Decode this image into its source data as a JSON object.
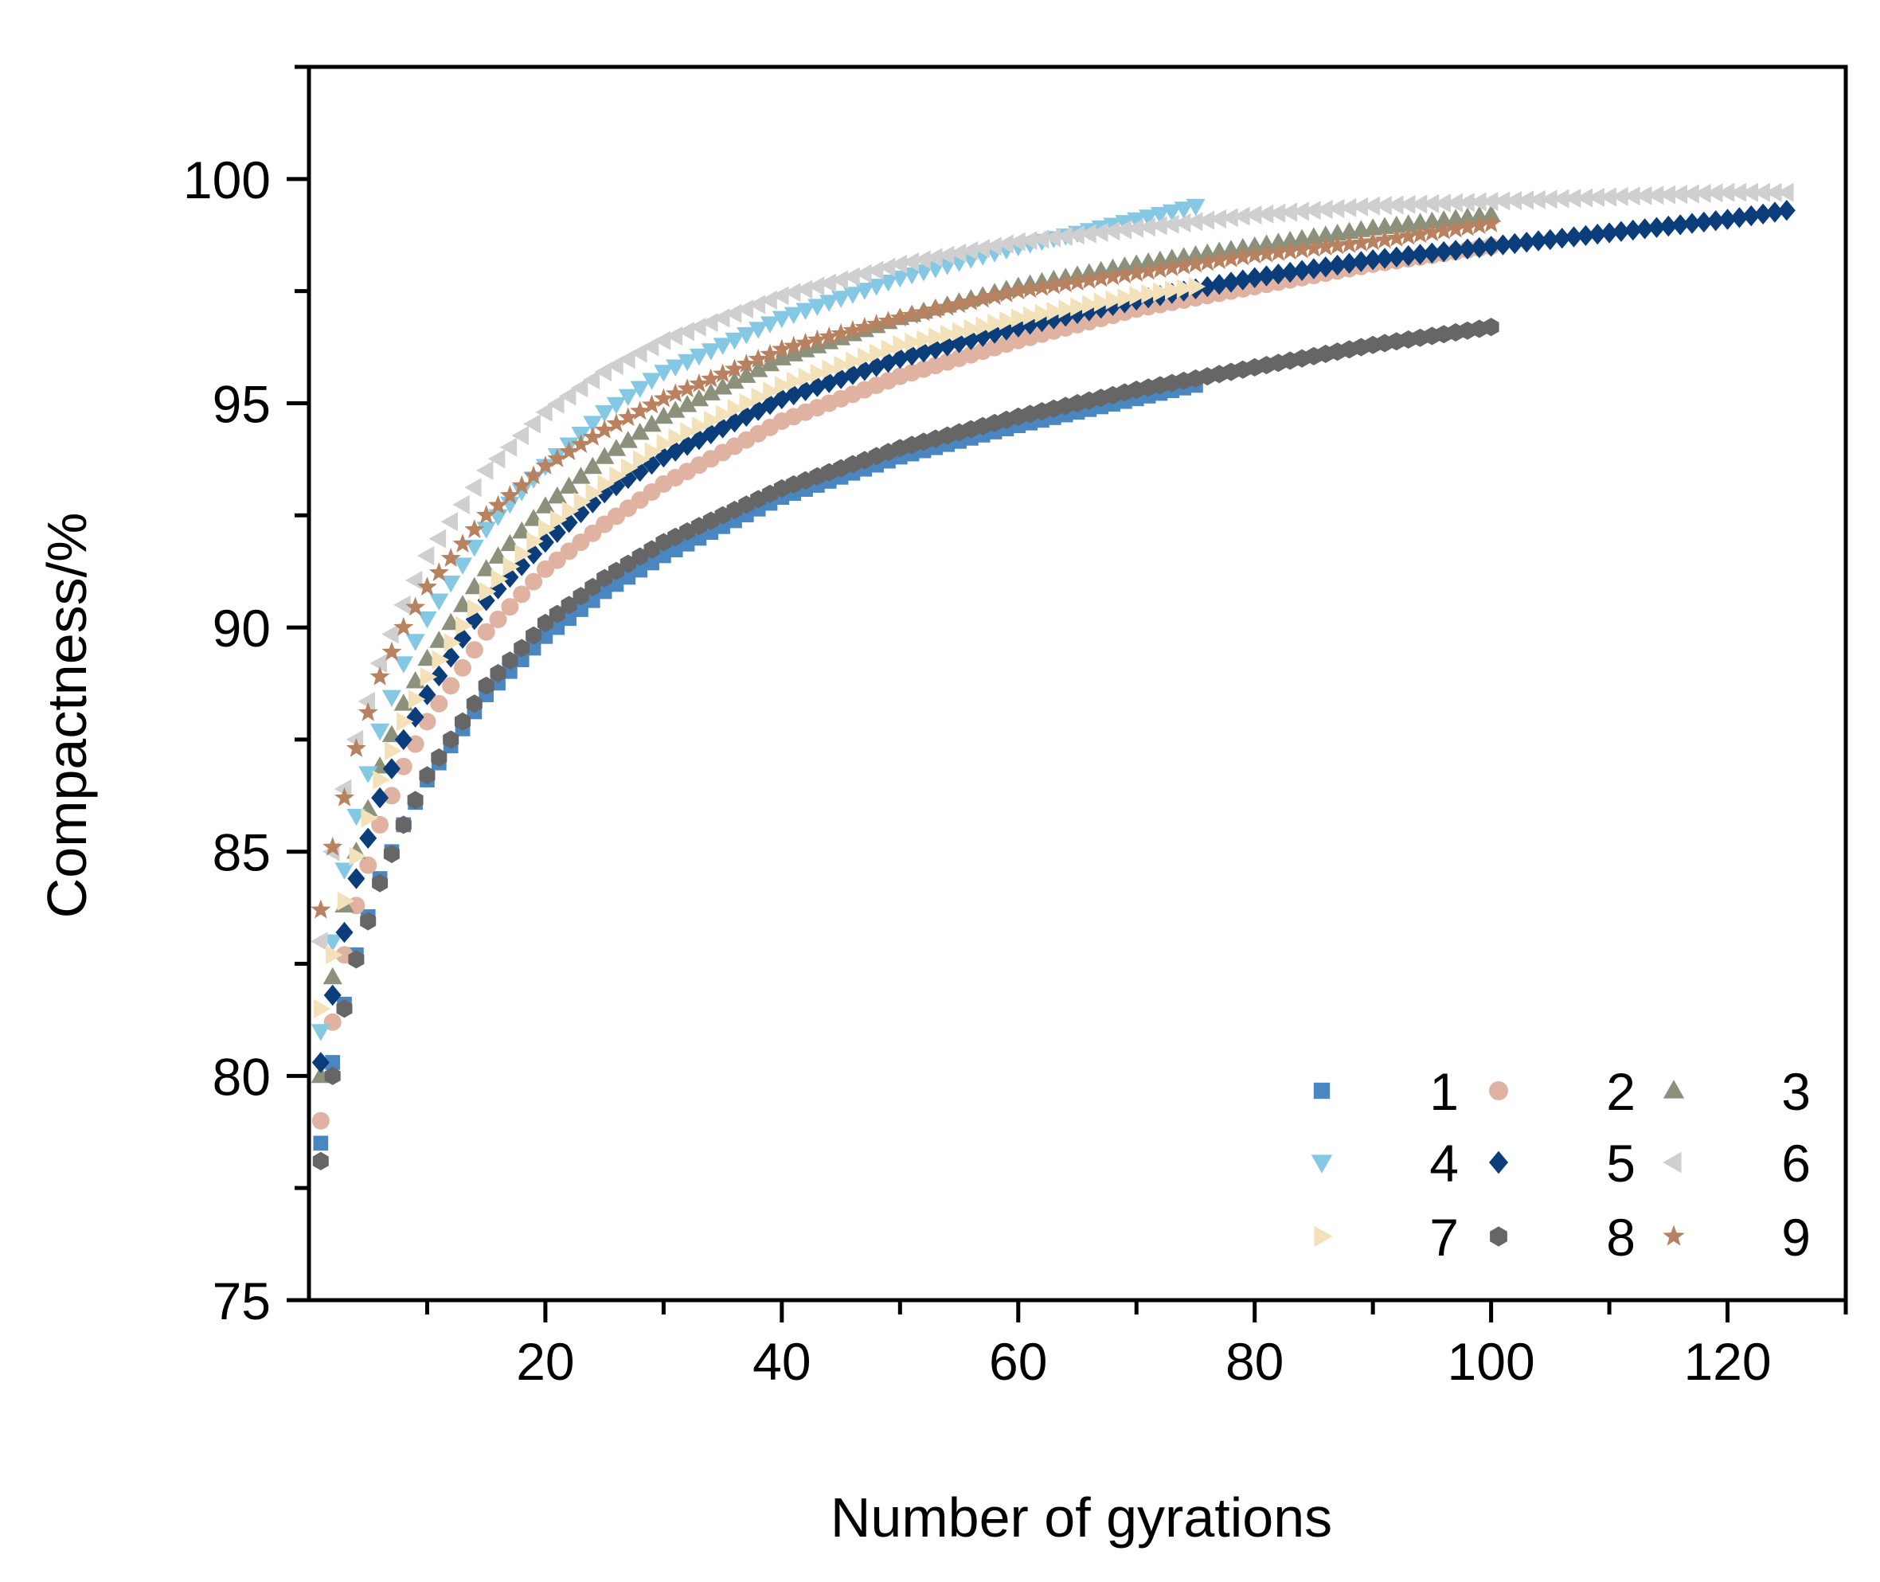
{
  "chart_data": {
    "type": "scatter",
    "title": "",
    "xlabel": "Number of gyrations",
    "ylabel": "Compactness/%",
    "xlim": [
      0,
      130
    ],
    "ylim": [
      75,
      102.5
    ],
    "xticks": [
      20,
      40,
      60,
      80,
      100,
      120
    ],
    "xtick_labels": [
      "20",
      "40",
      "60",
      "80",
      "100",
      "120"
    ],
    "xminor_ticks": [
      10,
      30,
      50,
      70,
      90,
      110,
      130
    ],
    "yticks": [
      75,
      80,
      85,
      90,
      95,
      100
    ],
    "ytick_labels": [
      "75",
      "80",
      "85",
      "90",
      "95",
      "100"
    ],
    "yminor_ticks": [
      77.5,
      82.5,
      87.5,
      92.5,
      97.5,
      102.5
    ],
    "grid": false,
    "legend": {
      "position": "bottom-right",
      "columns": 3
    },
    "series": [
      {
        "name": "1",
        "marker": "square",
        "color": "#4a86bf",
        "n_max": 75,
        "anchors": [
          [
            1,
            78.5
          ],
          [
            2,
            80.3
          ],
          [
            3,
            81.6
          ],
          [
            4,
            82.7
          ],
          [
            6,
            84.4
          ],
          [
            8,
            85.6
          ],
          [
            10,
            86.6
          ],
          [
            15,
            88.5
          ],
          [
            20,
            89.8
          ],
          [
            25,
            90.8
          ],
          [
            30,
            91.6
          ],
          [
            40,
            92.9
          ],
          [
            50,
            93.8
          ],
          [
            60,
            94.5
          ],
          [
            70,
            95.1
          ],
          [
            75,
            95.4
          ]
        ]
      },
      {
        "name": "2",
        "marker": "circle",
        "color": "#dfb2a1",
        "n_max": 100,
        "anchors": [
          [
            1,
            79.0
          ],
          [
            2,
            81.2
          ],
          [
            3,
            82.7
          ],
          [
            4,
            83.8
          ],
          [
            6,
            85.6
          ],
          [
            8,
            86.9
          ],
          [
            10,
            87.9
          ],
          [
            15,
            89.9
          ],
          [
            20,
            91.3
          ],
          [
            25,
            92.3
          ],
          [
            30,
            93.2
          ],
          [
            40,
            94.6
          ],
          [
            50,
            95.6
          ],
          [
            60,
            96.4
          ],
          [
            70,
            97.1
          ],
          [
            80,
            97.6
          ],
          [
            90,
            98.1
          ],
          [
            100,
            98.5
          ]
        ]
      },
      {
        "name": "3",
        "marker": "triangle-up",
        "color": "#8b917b",
        "n_max": 100,
        "anchors": [
          [
            1,
            80.0
          ],
          [
            2,
            82.2
          ],
          [
            3,
            83.8
          ],
          [
            4,
            85.0
          ],
          [
            6,
            86.9
          ],
          [
            8,
            88.3
          ],
          [
            10,
            89.3
          ],
          [
            15,
            91.3
          ],
          [
            20,
            92.7
          ],
          [
            25,
            93.8
          ],
          [
            30,
            94.7
          ],
          [
            40,
            96.0
          ],
          [
            50,
            96.9
          ],
          [
            60,
            97.6
          ],
          [
            70,
            98.1
          ],
          [
            80,
            98.5
          ],
          [
            90,
            98.9
          ],
          [
            100,
            99.2
          ]
        ]
      },
      {
        "name": "4",
        "marker": "triangle-down",
        "color": "#84c8e4",
        "n_max": 75,
        "anchors": [
          [
            1,
            81.0
          ],
          [
            2,
            83.0
          ],
          [
            3,
            84.6
          ],
          [
            4,
            85.8
          ],
          [
            6,
            87.7
          ],
          [
            8,
            89.2
          ],
          [
            10,
            90.2
          ],
          [
            15,
            92.2
          ],
          [
            20,
            93.6
          ],
          [
            25,
            94.8
          ],
          [
            30,
            95.7
          ],
          [
            40,
            96.9
          ],
          [
            50,
            97.8
          ],
          [
            60,
            98.5
          ],
          [
            70,
            99.1
          ],
          [
            75,
            99.4
          ]
        ]
      },
      {
        "name": "5",
        "marker": "diamond",
        "color": "#0a3d7a",
        "n_max": 125,
        "anchors": [
          [
            1,
            80.3
          ],
          [
            2,
            81.8
          ],
          [
            3,
            83.2
          ],
          [
            4,
            84.4
          ],
          [
            6,
            86.2
          ],
          [
            8,
            87.5
          ],
          [
            10,
            88.5
          ],
          [
            15,
            90.6
          ],
          [
            20,
            91.9
          ],
          [
            25,
            93.0
          ],
          [
            30,
            93.8
          ],
          [
            40,
            95.1
          ],
          [
            50,
            96.0
          ],
          [
            60,
            96.7
          ],
          [
            70,
            97.3
          ],
          [
            80,
            97.8
          ],
          [
            90,
            98.2
          ],
          [
            100,
            98.5
          ],
          [
            110,
            98.8
          ],
          [
            120,
            99.1
          ],
          [
            125,
            99.3
          ]
        ]
      },
      {
        "name": "6",
        "marker": "triangle-left",
        "color": "#cfcfcf",
        "n_max": 125,
        "anchors": [
          [
            1,
            83.0
          ],
          [
            2,
            85.0
          ],
          [
            3,
            86.4
          ],
          [
            4,
            87.5
          ],
          [
            6,
            89.2
          ],
          [
            8,
            90.5
          ],
          [
            10,
            91.6
          ],
          [
            15,
            93.5
          ],
          [
            20,
            94.8
          ],
          [
            25,
            95.7
          ],
          [
            30,
            96.4
          ],
          [
            40,
            97.4
          ],
          [
            50,
            98.1
          ],
          [
            60,
            98.6
          ],
          [
            70,
            98.9
          ],
          [
            80,
            99.2
          ],
          [
            90,
            99.4
          ],
          [
            100,
            99.5
          ],
          [
            110,
            99.6
          ],
          [
            120,
            99.7
          ],
          [
            125,
            99.7
          ]
        ]
      },
      {
        "name": "7",
        "marker": "triangle-right",
        "color": "#f3e2b9",
        "n_max": 75,
        "anchors": [
          [
            1,
            81.5
          ],
          [
            2,
            82.7
          ],
          [
            3,
            83.9
          ],
          [
            4,
            84.9
          ],
          [
            6,
            86.6
          ],
          [
            8,
            87.9
          ],
          [
            10,
            88.9
          ],
          [
            15,
            90.8
          ],
          [
            20,
            92.2
          ],
          [
            25,
            93.2
          ],
          [
            30,
            94.1
          ],
          [
            40,
            95.4
          ],
          [
            50,
            96.3
          ],
          [
            60,
            96.9
          ],
          [
            70,
            97.4
          ],
          [
            75,
            97.6
          ]
        ]
      },
      {
        "name": "8",
        "marker": "hexagon",
        "color": "#666666",
        "n_max": 100,
        "anchors": [
          [
            1,
            78.1
          ],
          [
            2,
            80.0
          ],
          [
            3,
            81.5
          ],
          [
            4,
            82.6
          ],
          [
            6,
            84.3
          ],
          [
            8,
            85.6
          ],
          [
            10,
            86.7
          ],
          [
            15,
            88.7
          ],
          [
            20,
            90.1
          ],
          [
            25,
            91.1
          ],
          [
            30,
            91.9
          ],
          [
            40,
            93.1
          ],
          [
            50,
            94.0
          ],
          [
            60,
            94.7
          ],
          [
            70,
            95.3
          ],
          [
            80,
            95.8
          ],
          [
            90,
            96.3
          ],
          [
            100,
            96.7
          ]
        ]
      },
      {
        "name": "9",
        "marker": "star",
        "color": "#b8815f",
        "n_max": 100,
        "anchors": [
          [
            1,
            83.7
          ],
          [
            2,
            85.1
          ],
          [
            3,
            86.2
          ],
          [
            4,
            87.3
          ],
          [
            6,
            88.9
          ],
          [
            8,
            90.0
          ],
          [
            10,
            90.9
          ],
          [
            15,
            92.5
          ],
          [
            20,
            93.6
          ],
          [
            25,
            94.4
          ],
          [
            30,
            95.1
          ],
          [
            40,
            96.2
          ],
          [
            50,
            96.9
          ],
          [
            60,
            97.5
          ],
          [
            70,
            97.9
          ],
          [
            80,
            98.3
          ],
          [
            90,
            98.6
          ],
          [
            100,
            99.0
          ]
        ]
      }
    ]
  }
}
